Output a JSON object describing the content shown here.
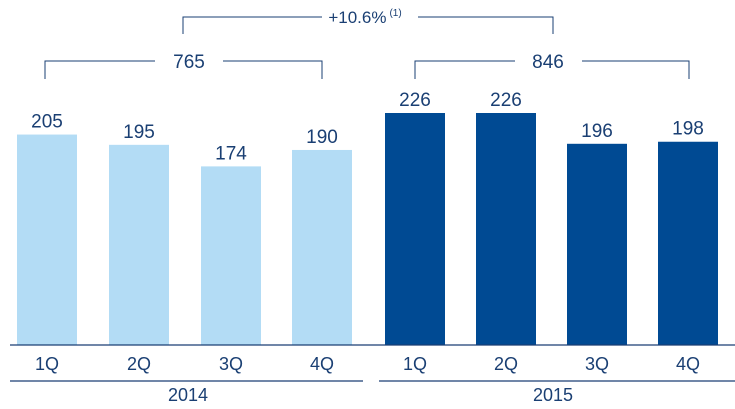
{
  "chart_data": {
    "type": "bar",
    "categories": [
      "1Q",
      "2Q",
      "3Q",
      "4Q",
      "1Q",
      "2Q",
      "3Q",
      "4Q"
    ],
    "groups": [
      {
        "label": "2014",
        "total": "765",
        "color": "#b3dcf5",
        "values": [
          205,
          195,
          174,
          190
        ]
      },
      {
        "label": "2015",
        "total": "846",
        "color": "#004a93",
        "values": [
          226,
          226,
          196,
          198
        ]
      }
    ],
    "values": [
      205,
      195,
      174,
      190,
      226,
      226,
      196,
      198
    ],
    "growth": {
      "text": "+10.6%",
      "note": "(1)"
    },
    "title": "",
    "xlabel": "",
    "ylabel": "",
    "ylim": [
      0,
      226
    ],
    "grid": false
  }
}
